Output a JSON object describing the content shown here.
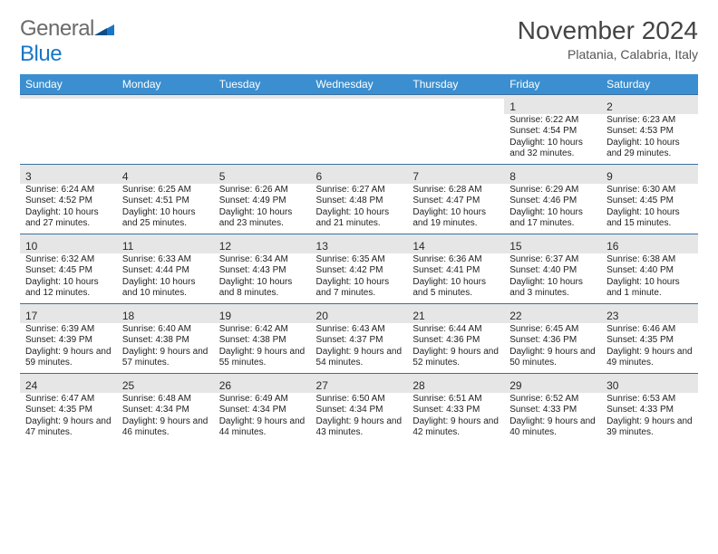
{
  "logo": {
    "text_general": "General",
    "text_blue": "Blue"
  },
  "title": "November 2024",
  "location": "Platania, Calabria, Italy",
  "colors": {
    "header_bg": "#3b8fd0",
    "header_text": "#ffffff",
    "daynum_bg": "#e6e6e6",
    "week_divider": "#3b6fa0",
    "logo_gray": "#6b6b6b",
    "logo_blue": "#1976c5",
    "text": "#222222"
  },
  "typography": {
    "title_fontsize": 28,
    "location_fontsize": 14,
    "weekday_fontsize": 12,
    "daynum_fontsize": 12,
    "cell_fontsize": 10
  },
  "weekdays": [
    "Sunday",
    "Monday",
    "Tuesday",
    "Wednesday",
    "Thursday",
    "Friday",
    "Saturday"
  ],
  "weeks": [
    [
      null,
      null,
      null,
      null,
      null,
      {
        "n": "1",
        "sunrise": "Sunrise: 6:22 AM",
        "sunset": "Sunset: 4:54 PM",
        "daylight": "Daylight: 10 hours and 32 minutes."
      },
      {
        "n": "2",
        "sunrise": "Sunrise: 6:23 AM",
        "sunset": "Sunset: 4:53 PM",
        "daylight": "Daylight: 10 hours and 29 minutes."
      }
    ],
    [
      {
        "n": "3",
        "sunrise": "Sunrise: 6:24 AM",
        "sunset": "Sunset: 4:52 PM",
        "daylight": "Daylight: 10 hours and 27 minutes."
      },
      {
        "n": "4",
        "sunrise": "Sunrise: 6:25 AM",
        "sunset": "Sunset: 4:51 PM",
        "daylight": "Daylight: 10 hours and 25 minutes."
      },
      {
        "n": "5",
        "sunrise": "Sunrise: 6:26 AM",
        "sunset": "Sunset: 4:49 PM",
        "daylight": "Daylight: 10 hours and 23 minutes."
      },
      {
        "n": "6",
        "sunrise": "Sunrise: 6:27 AM",
        "sunset": "Sunset: 4:48 PM",
        "daylight": "Daylight: 10 hours and 21 minutes."
      },
      {
        "n": "7",
        "sunrise": "Sunrise: 6:28 AM",
        "sunset": "Sunset: 4:47 PM",
        "daylight": "Daylight: 10 hours and 19 minutes."
      },
      {
        "n": "8",
        "sunrise": "Sunrise: 6:29 AM",
        "sunset": "Sunset: 4:46 PM",
        "daylight": "Daylight: 10 hours and 17 minutes."
      },
      {
        "n": "9",
        "sunrise": "Sunrise: 6:30 AM",
        "sunset": "Sunset: 4:45 PM",
        "daylight": "Daylight: 10 hours and 15 minutes."
      }
    ],
    [
      {
        "n": "10",
        "sunrise": "Sunrise: 6:32 AM",
        "sunset": "Sunset: 4:45 PM",
        "daylight": "Daylight: 10 hours and 12 minutes."
      },
      {
        "n": "11",
        "sunrise": "Sunrise: 6:33 AM",
        "sunset": "Sunset: 4:44 PM",
        "daylight": "Daylight: 10 hours and 10 minutes."
      },
      {
        "n": "12",
        "sunrise": "Sunrise: 6:34 AM",
        "sunset": "Sunset: 4:43 PM",
        "daylight": "Daylight: 10 hours and 8 minutes."
      },
      {
        "n": "13",
        "sunrise": "Sunrise: 6:35 AM",
        "sunset": "Sunset: 4:42 PM",
        "daylight": "Daylight: 10 hours and 7 minutes."
      },
      {
        "n": "14",
        "sunrise": "Sunrise: 6:36 AM",
        "sunset": "Sunset: 4:41 PM",
        "daylight": "Daylight: 10 hours and 5 minutes."
      },
      {
        "n": "15",
        "sunrise": "Sunrise: 6:37 AM",
        "sunset": "Sunset: 4:40 PM",
        "daylight": "Daylight: 10 hours and 3 minutes."
      },
      {
        "n": "16",
        "sunrise": "Sunrise: 6:38 AM",
        "sunset": "Sunset: 4:40 PM",
        "daylight": "Daylight: 10 hours and 1 minute."
      }
    ],
    [
      {
        "n": "17",
        "sunrise": "Sunrise: 6:39 AM",
        "sunset": "Sunset: 4:39 PM",
        "daylight": "Daylight: 9 hours and 59 minutes."
      },
      {
        "n": "18",
        "sunrise": "Sunrise: 6:40 AM",
        "sunset": "Sunset: 4:38 PM",
        "daylight": "Daylight: 9 hours and 57 minutes."
      },
      {
        "n": "19",
        "sunrise": "Sunrise: 6:42 AM",
        "sunset": "Sunset: 4:38 PM",
        "daylight": "Daylight: 9 hours and 55 minutes."
      },
      {
        "n": "20",
        "sunrise": "Sunrise: 6:43 AM",
        "sunset": "Sunset: 4:37 PM",
        "daylight": "Daylight: 9 hours and 54 minutes."
      },
      {
        "n": "21",
        "sunrise": "Sunrise: 6:44 AM",
        "sunset": "Sunset: 4:36 PM",
        "daylight": "Daylight: 9 hours and 52 minutes."
      },
      {
        "n": "22",
        "sunrise": "Sunrise: 6:45 AM",
        "sunset": "Sunset: 4:36 PM",
        "daylight": "Daylight: 9 hours and 50 minutes."
      },
      {
        "n": "23",
        "sunrise": "Sunrise: 6:46 AM",
        "sunset": "Sunset: 4:35 PM",
        "daylight": "Daylight: 9 hours and 49 minutes."
      }
    ],
    [
      {
        "n": "24",
        "sunrise": "Sunrise: 6:47 AM",
        "sunset": "Sunset: 4:35 PM",
        "daylight": "Daylight: 9 hours and 47 minutes."
      },
      {
        "n": "25",
        "sunrise": "Sunrise: 6:48 AM",
        "sunset": "Sunset: 4:34 PM",
        "daylight": "Daylight: 9 hours and 46 minutes."
      },
      {
        "n": "26",
        "sunrise": "Sunrise: 6:49 AM",
        "sunset": "Sunset: 4:34 PM",
        "daylight": "Daylight: 9 hours and 44 minutes."
      },
      {
        "n": "27",
        "sunrise": "Sunrise: 6:50 AM",
        "sunset": "Sunset: 4:34 PM",
        "daylight": "Daylight: 9 hours and 43 minutes."
      },
      {
        "n": "28",
        "sunrise": "Sunrise: 6:51 AM",
        "sunset": "Sunset: 4:33 PM",
        "daylight": "Daylight: 9 hours and 42 minutes."
      },
      {
        "n": "29",
        "sunrise": "Sunrise: 6:52 AM",
        "sunset": "Sunset: 4:33 PM",
        "daylight": "Daylight: 9 hours and 40 minutes."
      },
      {
        "n": "30",
        "sunrise": "Sunrise: 6:53 AM",
        "sunset": "Sunset: 4:33 PM",
        "daylight": "Daylight: 9 hours and 39 minutes."
      }
    ]
  ]
}
